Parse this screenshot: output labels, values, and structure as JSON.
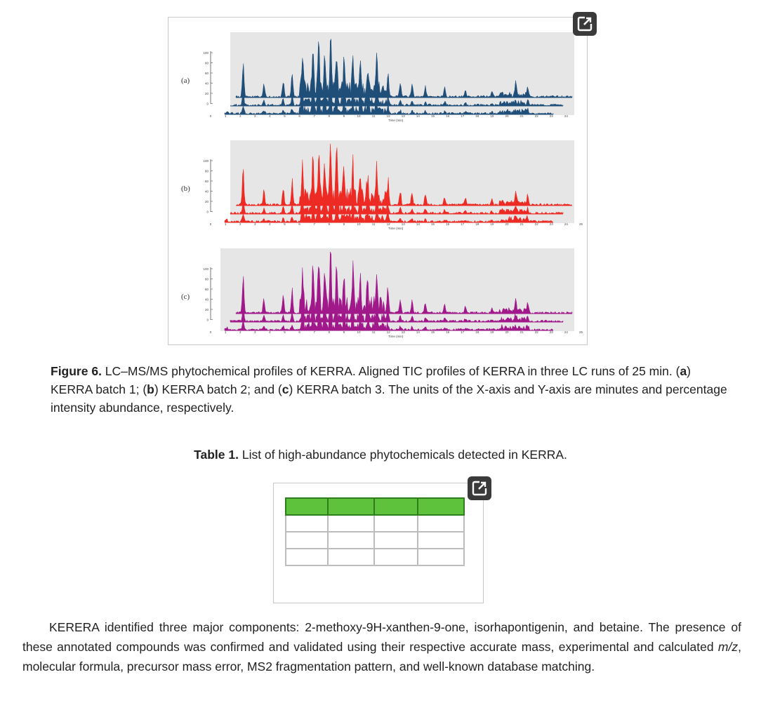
{
  "figure": {
    "panels": [
      {
        "label": "(a)",
        "color": "#1f4e79"
      },
      {
        "label": "(b)",
        "color": "#ee2a24"
      },
      {
        "label": "(c)",
        "color": "#a0188a"
      }
    ],
    "y_ticks": [
      "100",
      "80",
      "60",
      "40",
      "20",
      "0"
    ],
    "x_label": "Time (min)",
    "caption": {
      "figure_label": "Figure 6.",
      "text_1": " LC–MS/MS phytochemical profiles of KERRA. Aligned TIC profiles of KERRA in three LC runs of 25 min. (",
      "a": "a",
      "text_2": ") KERRA batch 1; (",
      "b": "b",
      "text_3": ") KERRA batch 2; and (",
      "c": "c",
      "text_4": ") KERRA batch 3. The units of the X-axis and Y-axis are minutes and percentage intensity abundance, respectively."
    }
  },
  "table": {
    "label": "Table 1.",
    "title": " List of high-abundance phytochemicals detected in KERRA.",
    "accent": "#5ec23c"
  },
  "paragraph": {
    "t1": "KERERA identified three major components: 2-methoxy-9H-xanthen-9-one, isorhapontigenin, and betaine. The presence of these annotated compounds was confirmed and validated using their respective accurate mass, experimental and calculated ",
    "mz": "m/z",
    "t2": ", molecular formula, precursor mass error, MS2 fragmentation pattern, and well-known database matching."
  },
  "icons": {
    "expand": "external-link-icon"
  }
}
